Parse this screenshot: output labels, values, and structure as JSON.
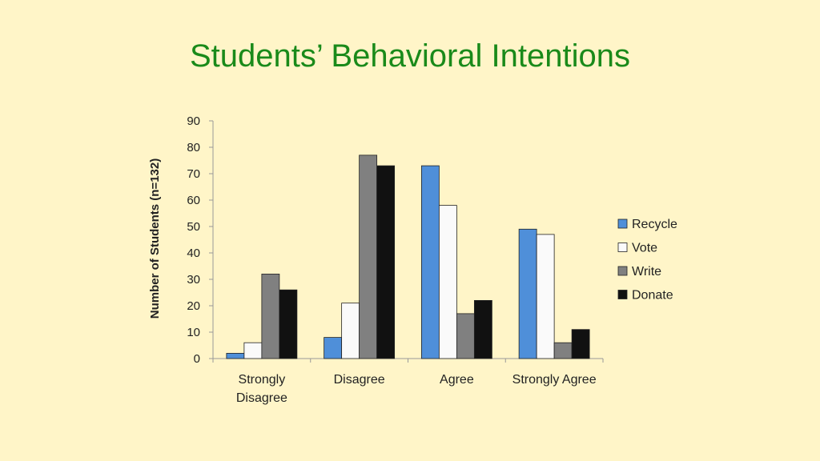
{
  "slide": {
    "background": "#fff5c8"
  },
  "chart_data": {
    "type": "bar",
    "title": "Students’ Behavioral Intentions",
    "title_color": "#1a8a1a",
    "ylabel": "Number of Students (n=132)",
    "xlabel": "",
    "ylim": [
      0,
      90
    ],
    "yticks": [
      0,
      10,
      20,
      30,
      40,
      50,
      60,
      70,
      80,
      90
    ],
    "grid": false,
    "legend_position": "right",
    "categories": [
      [
        "Strongly",
        "Disagree"
      ],
      [
        "Disagree"
      ],
      [
        "Agree"
      ],
      [
        "Strongly Agree"
      ]
    ],
    "series": [
      {
        "name": "Recycle",
        "color": "#4f8fd9",
        "values": [
          2,
          8,
          73,
          49
        ]
      },
      {
        "name": "Vote",
        "color": "#fafafa",
        "values": [
          6,
          21,
          58,
          47
        ]
      },
      {
        "name": "Write",
        "color": "#808080",
        "values": [
          32,
          77,
          17,
          6
        ]
      },
      {
        "name": "Donate",
        "color": "#111111",
        "values": [
          26,
          73,
          22,
          11
        ]
      }
    ]
  }
}
